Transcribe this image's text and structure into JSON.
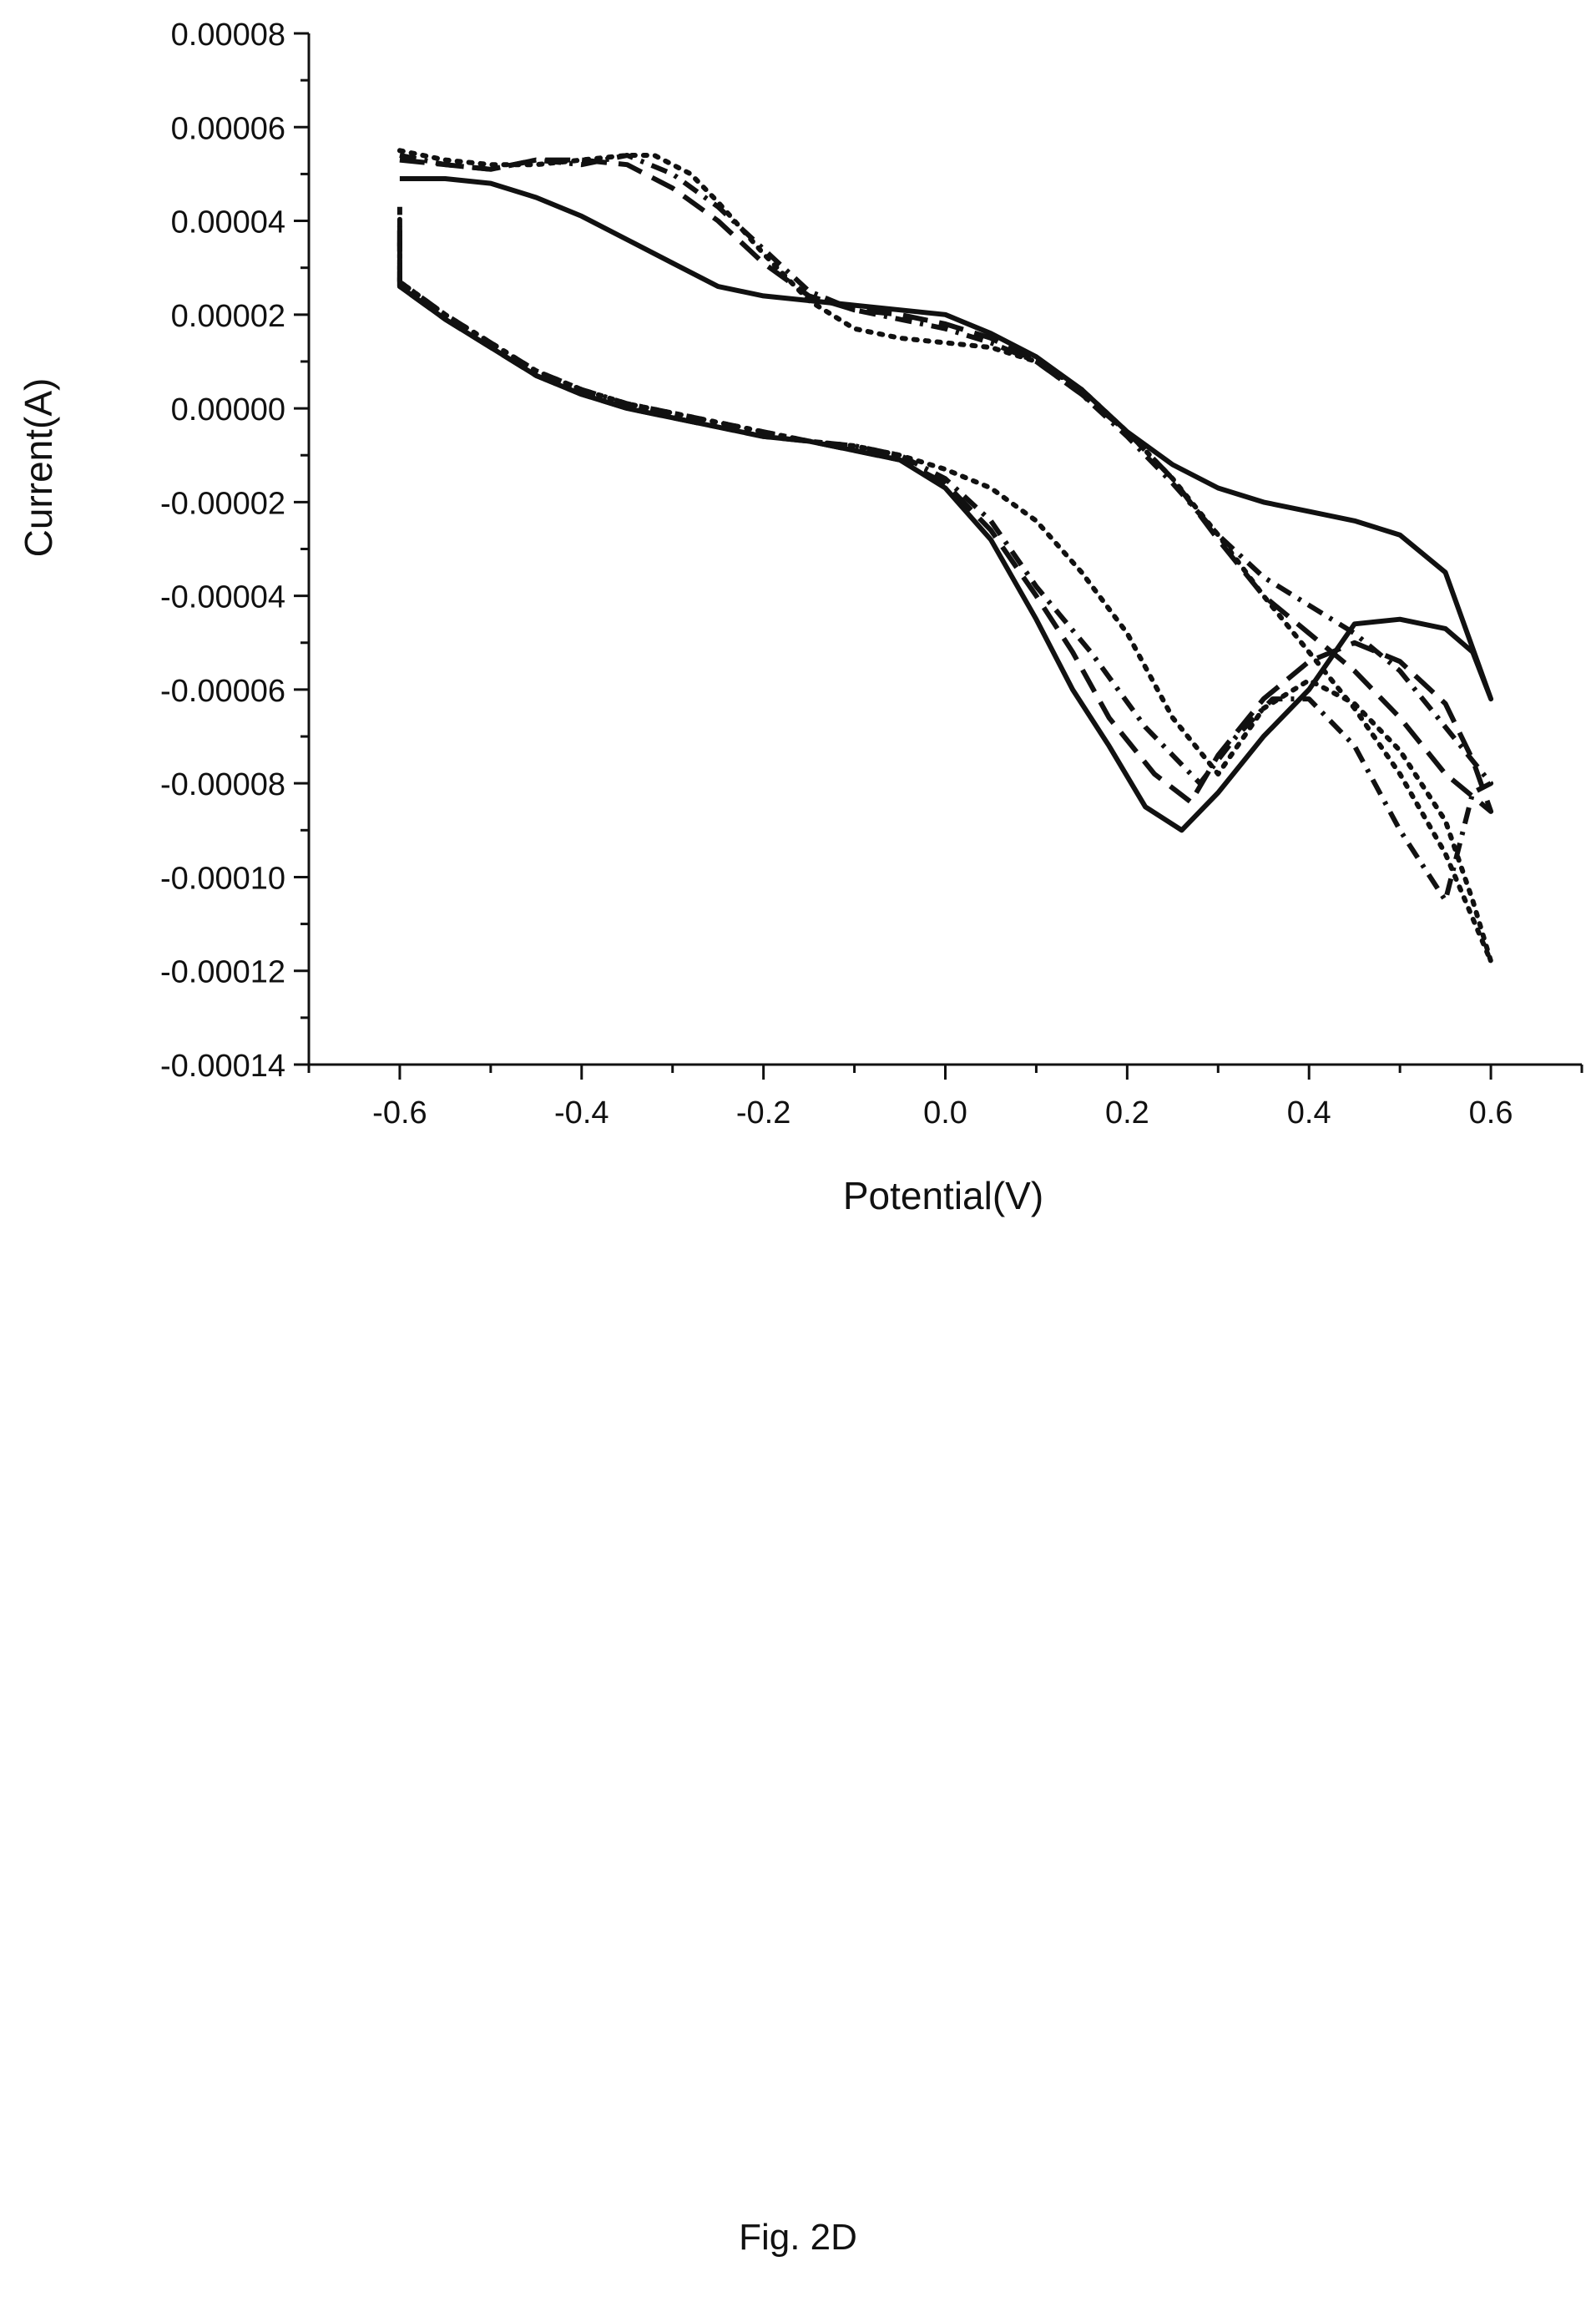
{
  "caption": "Fig. 2D",
  "chart_data": {
    "type": "line",
    "title": "",
    "xlabel": "Potential(V)",
    "ylabel": "Current(A)",
    "xlim": [
      -0.7,
      0.7
    ],
    "ylim": [
      -0.00014,
      8e-05
    ],
    "x_ticks": [
      -0.6,
      -0.4,
      -0.2,
      0.0,
      0.2,
      0.4,
      0.6
    ],
    "x_tick_labels": [
      "-0.6",
      "-0.4",
      "-0.2",
      "0.0",
      "0.2",
      "0.4",
      "0.6"
    ],
    "y_ticks": [
      8e-05,
      6e-05,
      4e-05,
      2e-05,
      0.0,
      -2e-05,
      -4e-05,
      -6e-05,
      -8e-05,
      -0.0001,
      -0.00012,
      -0.00014
    ],
    "y_tick_labels": [
      "0.00008",
      "0.00006",
      "0.00004",
      "0.00002",
      "0.00000",
      "-0.00002",
      "-0.00004",
      "-0.00006",
      "-0.00008",
      "-0.00010",
      "-0.00012",
      "-0.00014"
    ],
    "grid": false,
    "legend": "none",
    "series": [
      {
        "style": "solid",
        "color": "#111111",
        "x": [
          -0.6,
          -0.55,
          -0.5,
          -0.45,
          -0.4,
          -0.35,
          -0.3,
          -0.25,
          -0.2,
          -0.15,
          -0.1,
          -0.05,
          0.0,
          0.05,
          0.1,
          0.15,
          0.2,
          0.25,
          0.3,
          0.35,
          0.4,
          0.45,
          0.5,
          0.55,
          0.6,
          0.58,
          0.55,
          0.5,
          0.45,
          0.4,
          0.35,
          0.3,
          0.26,
          0.22,
          0.18,
          0.14,
          0.1,
          0.05,
          0.0,
          -0.05,
          -0.1,
          -0.15,
          -0.2,
          -0.25,
          -0.3,
          -0.35,
          -0.4,
          -0.45,
          -0.5,
          -0.55,
          -0.6,
          -0.6
        ],
        "y": [
          4.9e-05,
          4.9e-05,
          4.8e-05,
          4.5e-05,
          4.1e-05,
          3.6e-05,
          3.1e-05,
          2.6e-05,
          2.4e-05,
          2.3e-05,
          2.2e-05,
          2.1e-05,
          2e-05,
          1.6e-05,
          1.1e-05,
          4e-06,
          -5e-06,
          -1.2e-05,
          -1.7e-05,
          -2e-05,
          -2.2e-05,
          -2.4e-05,
          -2.7e-05,
          -3.5e-05,
          -6.2e-05,
          -5.2e-05,
          -4.7e-05,
          -4.5e-05,
          -4.6e-05,
          -6e-05,
          -7e-05,
          -8.2e-05,
          -9e-05,
          -8.5e-05,
          -7.2e-05,
          -6e-05,
          -4.5e-05,
          -2.8e-05,
          -1.7e-05,
          -1.1e-05,
          -9e-06,
          -7e-06,
          -6e-06,
          -4e-06,
          -2e-06,
          0.0,
          3e-06,
          7e-06,
          1.3e-05,
          1.9e-05,
          2.6e-05,
          3.8e-05
        ]
      },
      {
        "style": "dashed",
        "color": "#111111",
        "x": [
          -0.6,
          -0.55,
          -0.5,
          -0.45,
          -0.4,
          -0.35,
          -0.3,
          -0.25,
          -0.2,
          -0.15,
          -0.1,
          -0.05,
          0.0,
          0.05,
          0.1,
          0.15,
          0.2,
          0.25,
          0.3,
          0.35,
          0.4,
          0.45,
          0.5,
          0.55,
          0.6,
          0.58,
          0.55,
          0.5,
          0.45,
          0.4,
          0.35,
          0.3,
          0.27,
          0.23,
          0.18,
          0.14,
          0.1,
          0.05,
          0.0,
          -0.05,
          -0.1,
          -0.15,
          -0.2,
          -0.25,
          -0.3,
          -0.35,
          -0.4,
          -0.45,
          -0.5,
          -0.55,
          -0.6,
          -0.6
        ],
        "y": [
          5.3e-05,
          5.2e-05,
          5.1e-05,
          5.3e-05,
          5.3e-05,
          5.2e-05,
          4.7e-05,
          4e-05,
          3.1e-05,
          2.4e-05,
          2.1e-05,
          2e-05,
          1.8e-05,
          1.5e-05,
          1e-05,
          3e-06,
          -5e-06,
          -1.5e-05,
          -2.8e-05,
          -4e-05,
          -4.8e-05,
          -5.6e-05,
          -6.6e-05,
          -7.8e-05,
          -8.6e-05,
          -7.5e-05,
          -6.3e-05,
          -5.4e-05,
          -5e-05,
          -5.4e-05,
          -6.2e-05,
          -7.4e-05,
          -8.4e-05,
          -7.8e-05,
          -6.6e-05,
          -5.2e-05,
          -4e-05,
          -2.6e-05,
          -1.6e-05,
          -1.1e-05,
          -9e-06,
          -7e-06,
          -6e-06,
          -4e-06,
          -2e-06,
          0.0,
          3e-06,
          7e-06,
          1.3e-05,
          1.9e-05,
          2.6e-05,
          4e-05
        ]
      },
      {
        "style": "dotted",
        "color": "#111111",
        "x": [
          -0.6,
          -0.55,
          -0.5,
          -0.45,
          -0.4,
          -0.35,
          -0.32,
          -0.28,
          -0.25,
          -0.2,
          -0.15,
          -0.1,
          -0.05,
          0.0,
          0.05,
          0.1,
          0.15,
          0.2,
          0.25,
          0.3,
          0.35,
          0.4,
          0.45,
          0.5,
          0.55,
          0.6,
          0.58,
          0.55,
          0.5,
          0.45,
          0.4,
          0.35,
          0.3,
          0.25,
          0.2,
          0.15,
          0.1,
          0.05,
          0.0,
          -0.05,
          -0.1,
          -0.15,
          -0.2,
          -0.25,
          -0.3,
          -0.35,
          -0.4,
          -0.45,
          -0.5,
          -0.55,
          -0.6,
          -0.6
        ],
        "y": [
          5.5e-05,
          5.3e-05,
          5.2e-05,
          5.2e-05,
          5.3e-05,
          5.4e-05,
          5.4e-05,
          5e-05,
          4.4e-05,
          3.3e-05,
          2.3e-05,
          1.7e-05,
          1.5e-05,
          1.4e-05,
          1.3e-05,
          1e-05,
          4e-06,
          -5e-06,
          -1.5e-05,
          -2.7e-05,
          -4e-05,
          -5.2e-05,
          -6.4e-05,
          -7.8e-05,
          -9.5e-05,
          -0.000118,
          -0.000105,
          -8.8e-05,
          -7.3e-05,
          -6.3e-05,
          -5.8e-05,
          -6.4e-05,
          -7.8e-05,
          -6.6e-05,
          -4.8e-05,
          -3.5e-05,
          -2.4e-05,
          -1.7e-05,
          -1.3e-05,
          -1e-05,
          -8e-06,
          -7e-06,
          -5e-06,
          -3e-06,
          -1e-06,
          1e-06,
          4e-06,
          8e-06,
          1.4e-05,
          2e-05,
          2.7e-05,
          4.2e-05
        ]
      },
      {
        "style": "dash-dot",
        "color": "#111111",
        "x": [
          -0.6,
          -0.55,
          -0.5,
          -0.45,
          -0.4,
          -0.35,
          -0.3,
          -0.25,
          -0.2,
          -0.15,
          -0.1,
          -0.05,
          0.0,
          0.05,
          0.1,
          0.15,
          0.2,
          0.25,
          0.3,
          0.35,
          0.4,
          0.45,
          0.5,
          0.55,
          0.6,
          0.58,
          0.55,
          0.5,
          0.45,
          0.4,
          0.36,
          0.32,
          0.28,
          0.22,
          0.16,
          0.1,
          0.05,
          0.0,
          -0.05,
          -0.1,
          -0.15,
          -0.2,
          -0.25,
          -0.3,
          -0.35,
          -0.4,
          -0.45,
          -0.5,
          -0.55,
          -0.6,
          -0.6
        ],
        "y": [
          5.4e-05,
          5.2e-05,
          5.1e-05,
          5.3e-05,
          5.2e-05,
          5.4e-05,
          5e-05,
          4.3e-05,
          3.4e-05,
          2.5e-05,
          2.1e-05,
          1.9e-05,
          1.7e-05,
          1.4e-05,
          1e-05,
          3e-06,
          -6e-06,
          -1.6e-05,
          -2.7e-05,
          -3.6e-05,
          -4.2e-05,
          -4.8e-05,
          -5.6e-05,
          -6.8e-05,
          -8e-05,
          -8.2e-05,
          -0.000105,
          -9e-05,
          -7.2e-05,
          -6.2e-05,
          -6.2e-05,
          -7e-05,
          -8e-05,
          -6.8e-05,
          -5.2e-05,
          -3.8e-05,
          -2.4e-05,
          -1.5e-05,
          -1e-05,
          -8e-06,
          -7e-06,
          -5e-06,
          -3e-06,
          -1e-06,
          1e-06,
          4e-06,
          8e-06,
          1.4e-05,
          2e-05,
          2.7e-05,
          4.3e-05
        ]
      }
    ]
  }
}
